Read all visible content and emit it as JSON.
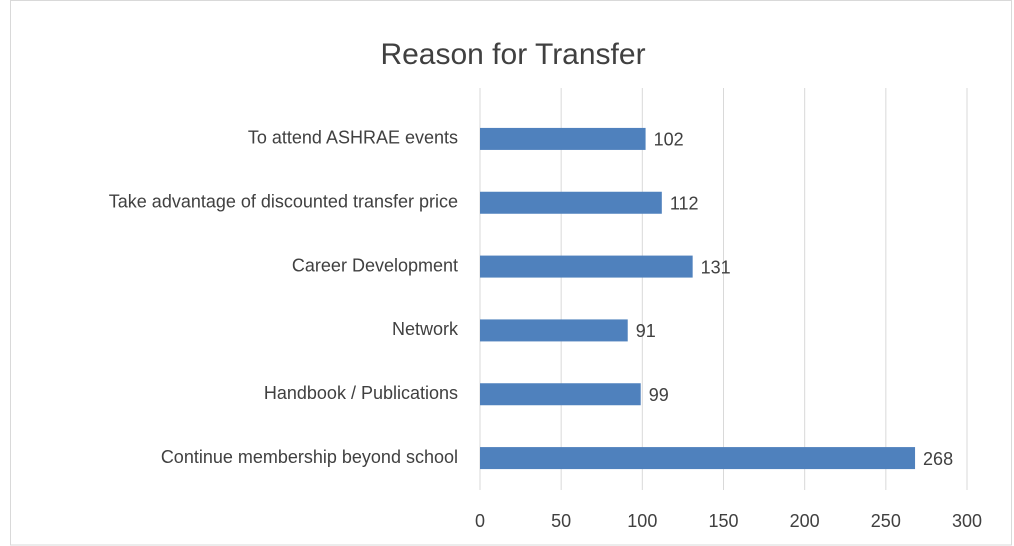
{
  "chart_data": {
    "type": "bar",
    "orientation": "horizontal",
    "title": "Reason for Transfer",
    "categories": [
      "To attend ASHRAE events",
      "Take advantage of discounted transfer price",
      "Career Development",
      "Network",
      "Handbook / Publications",
      "Continue membership beyond school"
    ],
    "values": [
      102,
      112,
      131,
      91,
      99,
      268
    ],
    "color": "#4f81bd",
    "xlim": [
      0,
      300
    ],
    "xticks": [
      0,
      50,
      100,
      150,
      200,
      250,
      300
    ],
    "grid": true
  }
}
